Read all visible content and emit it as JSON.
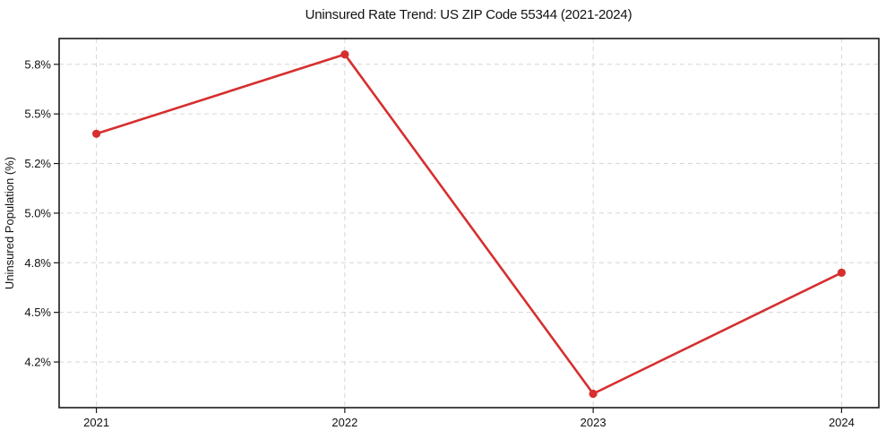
{
  "chart_data": {
    "type": "line",
    "title": "Uninsured Rate Trend: US ZIP Code 55344 (2021-2024)",
    "xlabel": "",
    "ylabel": "Uninsured Population (%)",
    "x": [
      2021,
      2022,
      2023,
      2024
    ],
    "x_tick_labels": [
      "2021",
      "2022",
      "2023",
      "2024"
    ],
    "values": [
      5.4,
      5.8,
      4.09,
      4.7
    ],
    "y_tick_values": [
      4.25,
      4.5,
      4.75,
      5.0,
      5.25,
      5.5,
      5.75
    ],
    "y_tick_labels": [
      "4.2%",
      "4.5%",
      "4.8%",
      "5.0%",
      "5.2%",
      "5.5%",
      "5.8%"
    ],
    "xlim": [
      2020.85,
      2024.15
    ],
    "ylim": [
      4.02,
      5.88
    ],
    "grid": true,
    "grid_style": "dashed",
    "legend": "none",
    "line_color": "#d62f2f",
    "marker": "circle",
    "grid_color": "#d6d6d6",
    "frame_color": "#1a1a1a",
    "text_color": "#111111"
  }
}
